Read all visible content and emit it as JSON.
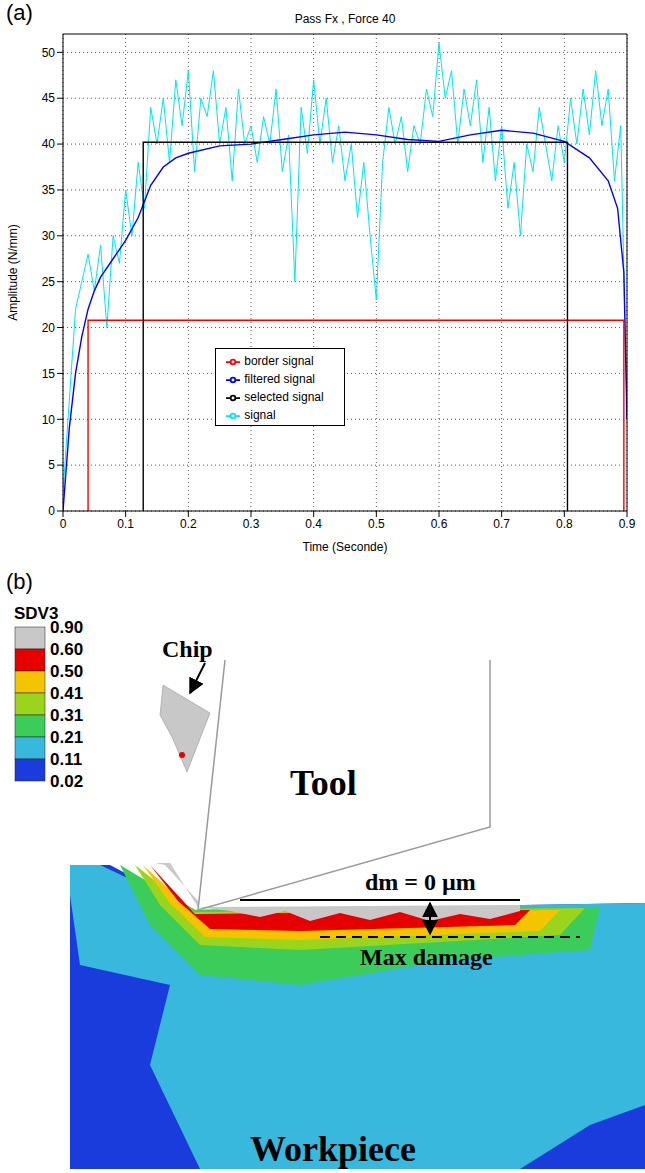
{
  "chart_data": {
    "type": "line",
    "panel_label": "(a)",
    "title": "Pass Fx , Force 40",
    "x_label": "Time (Seconde)",
    "y_label": "Amplitude (N/mm)",
    "xlim": [
      0,
      0.9
    ],
    "xticks": [
      0,
      0.1,
      0.2,
      0.3,
      0.4,
      0.5,
      0.6,
      0.7,
      0.8,
      0.9
    ],
    "ylim": [
      0,
      52
    ],
    "yticks": [
      0,
      5,
      10,
      15,
      20,
      25,
      30,
      35,
      40,
      45,
      50
    ],
    "grid": true,
    "legend": "lower center",
    "series": [
      {
        "name": "signal",
        "color": "#00e5ee",
        "x": [
          0,
          0.01,
          0.02,
          0.03,
          0.04,
          0.05,
          0.06,
          0.07,
          0.08,
          0.09,
          0.1,
          0.11,
          0.12,
          0.13,
          0.14,
          0.15,
          0.16,
          0.17,
          0.18,
          0.19,
          0.2,
          0.21,
          0.22,
          0.23,
          0.24,
          0.25,
          0.26,
          0.27,
          0.28,
          0.29,
          0.3,
          0.31,
          0.32,
          0.33,
          0.34,
          0.35,
          0.36,
          0.37,
          0.38,
          0.39,
          0.4,
          0.41,
          0.42,
          0.43,
          0.44,
          0.45,
          0.46,
          0.47,
          0.48,
          0.49,
          0.5,
          0.51,
          0.52,
          0.53,
          0.54,
          0.55,
          0.56,
          0.57,
          0.58,
          0.59,
          0.6,
          0.61,
          0.62,
          0.63,
          0.64,
          0.65,
          0.66,
          0.67,
          0.68,
          0.69,
          0.7,
          0.71,
          0.72,
          0.73,
          0.74,
          0.75,
          0.76,
          0.77,
          0.78,
          0.79,
          0.8,
          0.81,
          0.82,
          0.83,
          0.84,
          0.85,
          0.86,
          0.87,
          0.88,
          0.89,
          0.9
        ],
        "values": [
          2,
          12,
          22,
          25,
          28,
          24,
          29,
          20,
          30,
          27,
          35,
          30,
          38,
          33,
          44,
          40,
          45,
          38,
          47,
          42,
          48,
          37,
          45,
          43,
          48,
          40,
          44,
          36,
          46,
          40,
          42,
          38,
          43,
          40,
          46,
          37,
          41,
          25,
          44,
          39,
          47,
          40,
          45,
          38,
          42,
          36,
          40,
          32,
          38,
          30,
          23,
          38,
          44,
          40,
          43,
          37,
          42,
          40,
          46,
          43,
          51,
          45,
          48,
          40,
          46,
          42,
          47,
          38,
          44,
          36,
          42,
          33,
          38,
          30,
          40,
          37,
          44,
          40,
          36,
          42,
          38,
          45,
          40,
          46,
          41,
          48,
          42,
          46,
          36,
          42,
          10
        ]
      },
      {
        "name": "filtered signal",
        "color": "#0000ff",
        "x": [
          0,
          0.01,
          0.02,
          0.03,
          0.04,
          0.05,
          0.06,
          0.08,
          0.1,
          0.12,
          0.14,
          0.16,
          0.18,
          0.2,
          0.25,
          0.3,
          0.35,
          0.4,
          0.45,
          0.5,
          0.55,
          0.6,
          0.65,
          0.7,
          0.75,
          0.8,
          0.84,
          0.87,
          0.885,
          0.895,
          0.9
        ],
        "values": [
          0,
          9,
          15,
          19,
          22,
          24,
          25.5,
          27.5,
          29.5,
          32,
          35.5,
          37.5,
          38.5,
          39,
          39.8,
          40,
          40.5,
          41,
          41.3,
          41,
          40.5,
          40.3,
          41,
          41.5,
          41.2,
          40.3,
          38.5,
          36,
          33,
          26,
          10
        ]
      },
      {
        "name": "border signal",
        "color": "#ff0000",
        "x": [
          0.04,
          0.04,
          0.895,
          0.895
        ],
        "values": [
          0,
          20.8,
          20.8,
          0
        ]
      },
      {
        "name": "selected signal",
        "color": "#000000",
        "x": [
          0.128,
          0.128,
          0.805,
          0.805
        ],
        "values": [
          0,
          40.2,
          40.2,
          0
        ]
      }
    ]
  },
  "diagram": {
    "panel_label": "(b)",
    "colorbar": {
      "title": "SDV3",
      "ticks": [
        {
          "value": 0.9,
          "label": "0.90"
        },
        {
          "value": 0.6,
          "label": "0.60"
        },
        {
          "value": 0.5,
          "label": "0.50"
        },
        0.41,
        0.31,
        0.21,
        0.11,
        0.02
      ],
      "colors": [
        "#c8c8c8",
        "#e60000",
        "#f5c400",
        "#9ad41c",
        "#3ccc5a",
        "#38b8dc",
        "#1a3cdc"
      ]
    },
    "labels": {
      "chip": "Chip",
      "tool": "Tool",
      "depth": "dm = 0 µm",
      "max_damage": "Max damage",
      "workpiece": "Workpiece"
    }
  }
}
